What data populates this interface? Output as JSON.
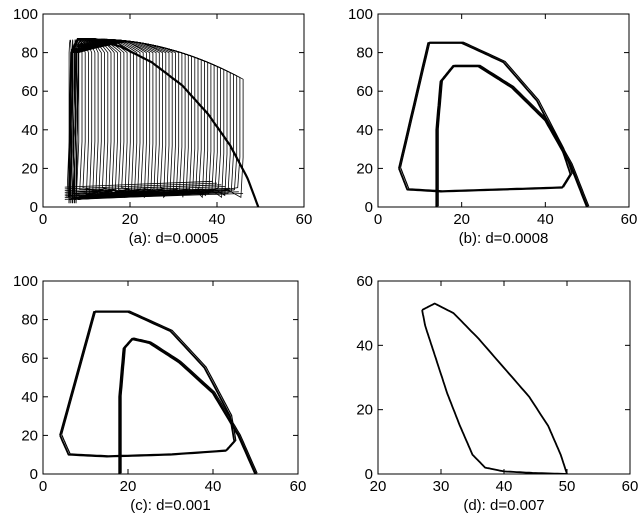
{
  "chart_data": [
    {
      "type": "line",
      "caption": "(a): d=0.0005",
      "xlim": [
        0,
        60
      ],
      "ylim": [
        0,
        100
      ],
      "xticks": [
        0,
        20,
        40,
        60
      ],
      "yticks": [
        0,
        20,
        40,
        60,
        80,
        100
      ],
      "grid": false,
      "series": [
        {
          "kind": "dense_spiral",
          "x": [
            6,
            6.5,
            8,
            12,
            18,
            25,
            32,
            38,
            43,
            47,
            49.5
          ],
          "y": [
            5,
            80,
            87,
            87,
            83,
            75,
            63,
            48,
            32,
            15,
            0
          ]
        }
      ]
    },
    {
      "type": "line",
      "caption": "(b): d=0.0008",
      "xlim": [
        0,
        60
      ],
      "ylim": [
        0,
        100
      ],
      "xticks": [
        0,
        20,
        40,
        60
      ],
      "yticks": [
        0,
        20,
        40,
        60,
        80,
        100
      ],
      "grid": false,
      "series": [
        {
          "kind": "outer_loop",
          "x": [
            5,
            12,
            20,
            30,
            38,
            44,
            46,
            44,
            30,
            15,
            7,
            5
          ],
          "y": [
            20,
            85,
            85,
            75,
            55,
            30,
            17,
            10,
            9,
            8,
            9,
            20
          ]
        },
        {
          "kind": "inner_loop",
          "x": [
            14,
            14,
            15,
            18,
            24,
            32,
            40,
            46,
            50
          ],
          "y": [
            0,
            40,
            65,
            73,
            73,
            62,
            45,
            22,
            0
          ]
        }
      ]
    },
    {
      "type": "line",
      "caption": "(c): d=0.001",
      "xlim": [
        0,
        60
      ],
      "ylim": [
        0,
        100
      ],
      "xticks": [
        0,
        20,
        40,
        60
      ],
      "yticks": [
        0,
        20,
        40,
        60,
        80,
        100
      ],
      "grid": false,
      "series": [
        {
          "kind": "outer_loop",
          "x": [
            4,
            12,
            20,
            30,
            38,
            44,
            45,
            43,
            30,
            15,
            6,
            4
          ],
          "y": [
            20,
            84,
            84,
            74,
            55,
            30,
            17,
            12,
            10,
            9,
            10,
            20
          ]
        },
        {
          "kind": "inner_loop",
          "x": [
            18,
            18,
            19,
            21,
            25,
            32,
            40,
            46,
            50
          ],
          "y": [
            0,
            40,
            65,
            70,
            68,
            58,
            42,
            20,
            0
          ]
        }
      ]
    },
    {
      "type": "line",
      "caption": "(d): d=0.007",
      "xlim": [
        20,
        60
      ],
      "ylim": [
        0,
        60
      ],
      "xticks": [
        20,
        30,
        40,
        50,
        60
      ],
      "yticks": [
        0,
        20,
        40,
        60
      ],
      "grid": false,
      "series": [
        {
          "kind": "closed_orbit",
          "x": [
            27,
            29,
            32,
            36,
            40,
            44,
            47,
            49,
            50,
            45,
            40,
            37,
            35,
            33,
            31,
            29,
            27.5,
            27
          ],
          "y": [
            51,
            53,
            50,
            42,
            33,
            24,
            15,
            6,
            0,
            0.3,
            0.8,
            2,
            6,
            15,
            25,
            37,
            46,
            51
          ]
        }
      ]
    }
  ]
}
